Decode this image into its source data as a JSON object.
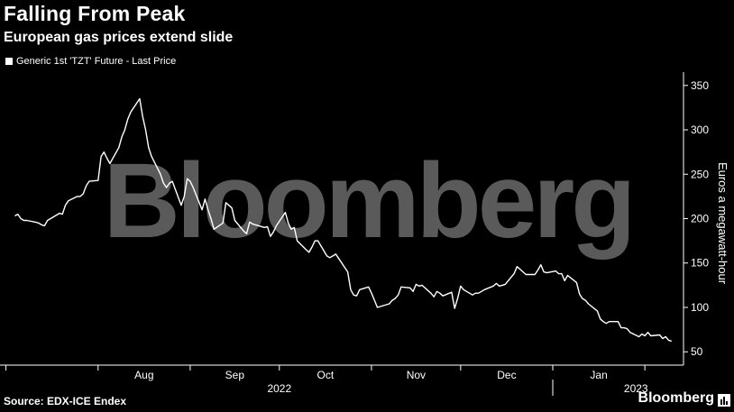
{
  "header": {
    "title": "Falling From Peak",
    "subtitle": "European gas prices extend slide"
  },
  "footer": {
    "source": "Source: EDX-ICE Endex",
    "brand": "Bloomberg"
  },
  "watermark": "Bloomberg",
  "colors": {
    "background": "#000000",
    "line": "#ffffff",
    "watermark": "#5a5a5a",
    "axis": "#ffffff"
  },
  "chart_data": {
    "type": "line",
    "title": "Falling From Peak",
    "subtitle": "European gas prices extend slide",
    "ylabel": "Euros a megawatt-hour",
    "y_axis_side": "right",
    "ylim": [
      35,
      365
    ],
    "yticks": [
      50,
      100,
      150,
      200,
      250,
      300,
      350
    ],
    "x_ticks": [
      {
        "label": "Aug",
        "date": "2022-08-01"
      },
      {
        "label": "Sep",
        "date": "2022-09-01"
      },
      {
        "label": "Oct",
        "date": "2022-10-01"
      },
      {
        "label": "Nov",
        "date": "2022-11-01"
      },
      {
        "label": "Dec",
        "date": "2022-12-01"
      },
      {
        "label": "Jan",
        "date": "2023-01-01"
      }
    ],
    "year_labels": [
      {
        "label": "2022"
      },
      {
        "label": "2023"
      }
    ],
    "legend": "top-left",
    "grid": false,
    "series": [
      {
        "name": "Generic 1st 'TZT' Future - Last Price",
        "points": [
          [
            "2022-07-04",
            203
          ],
          [
            "2022-07-05",
            205
          ],
          [
            "2022-07-06",
            200
          ],
          [
            "2022-07-07",
            198
          ],
          [
            "2022-07-08",
            198
          ],
          [
            "2022-07-11",
            196
          ],
          [
            "2022-07-12",
            195
          ],
          [
            "2022-07-13",
            193
          ],
          [
            "2022-07-14",
            192
          ],
          [
            "2022-07-15",
            198
          ],
          [
            "2022-07-18",
            204
          ],
          [
            "2022-07-19",
            206
          ],
          [
            "2022-07-20",
            205
          ],
          [
            "2022-07-21",
            215
          ],
          [
            "2022-07-22",
            220
          ],
          [
            "2022-07-25",
            225
          ],
          [
            "2022-07-26",
            225
          ],
          [
            "2022-07-27",
            228
          ],
          [
            "2022-07-28",
            237
          ],
          [
            "2022-07-29",
            242
          ],
          [
            "2022-08-01",
            243
          ],
          [
            "2022-08-02",
            270
          ],
          [
            "2022-08-03",
            275
          ],
          [
            "2022-08-04",
            268
          ],
          [
            "2022-08-05",
            262
          ],
          [
            "2022-08-08",
            280
          ],
          [
            "2022-08-09",
            292
          ],
          [
            "2022-08-10",
            300
          ],
          [
            "2022-08-11",
            312
          ],
          [
            "2022-08-12",
            320
          ],
          [
            "2022-08-15",
            335
          ],
          [
            "2022-08-16",
            315
          ],
          [
            "2022-08-17",
            300
          ],
          [
            "2022-08-18",
            280
          ],
          [
            "2022-08-19",
            270
          ],
          [
            "2022-08-22",
            250
          ],
          [
            "2022-08-23",
            240
          ],
          [
            "2022-08-24",
            235
          ],
          [
            "2022-08-25",
            240
          ],
          [
            "2022-08-26",
            242
          ],
          [
            "2022-08-29",
            215
          ],
          [
            "2022-08-30",
            225
          ],
          [
            "2022-08-31",
            245
          ],
          [
            "2022-09-01",
            242
          ],
          [
            "2022-09-02",
            235
          ],
          [
            "2022-09-05",
            210
          ],
          [
            "2022-09-06",
            222
          ],
          [
            "2022-09-07",
            210
          ],
          [
            "2022-09-08",
            200
          ],
          [
            "2022-09-09",
            188
          ],
          [
            "2022-09-12",
            195
          ],
          [
            "2022-09-13",
            218
          ],
          [
            "2022-09-14",
            215
          ],
          [
            "2022-09-15",
            212
          ],
          [
            "2022-09-16",
            198
          ],
          [
            "2022-09-19",
            186
          ],
          [
            "2022-09-20",
            183
          ],
          [
            "2022-09-21",
            196
          ],
          [
            "2022-09-22",
            194
          ],
          [
            "2022-09-23",
            193
          ],
          [
            "2022-09-26",
            190
          ],
          [
            "2022-09-27",
            191
          ],
          [
            "2022-09-28",
            180
          ],
          [
            "2022-09-29",
            185
          ],
          [
            "2022-09-30",
            192
          ],
          [
            "2022-10-03",
            207
          ],
          [
            "2022-10-04",
            195
          ],
          [
            "2022-10-05",
            188
          ],
          [
            "2022-10-06",
            190
          ],
          [
            "2022-10-07",
            175
          ],
          [
            "2022-10-10",
            165
          ],
          [
            "2022-10-11",
            162
          ],
          [
            "2022-10-12",
            168
          ],
          [
            "2022-10-13",
            175
          ],
          [
            "2022-10-14",
            175
          ],
          [
            "2022-10-17",
            158
          ],
          [
            "2022-10-18",
            156
          ],
          [
            "2022-10-19",
            158
          ],
          [
            "2022-10-20",
            160
          ],
          [
            "2022-10-21",
            155
          ],
          [
            "2022-10-24",
            140
          ],
          [
            "2022-10-25",
            120
          ],
          [
            "2022-10-26",
            114
          ],
          [
            "2022-10-27",
            113
          ],
          [
            "2022-10-28",
            120
          ],
          [
            "2022-10-31",
            123
          ],
          [
            "2022-11-01",
            116
          ],
          [
            "2022-11-02",
            108
          ],
          [
            "2022-11-03",
            100
          ],
          [
            "2022-11-04",
            101
          ],
          [
            "2022-11-07",
            104
          ],
          [
            "2022-11-08",
            108
          ],
          [
            "2022-11-09",
            110
          ],
          [
            "2022-11-10",
            114
          ],
          [
            "2022-11-11",
            123
          ],
          [
            "2022-11-14",
            122
          ],
          [
            "2022-11-15",
            118
          ],
          [
            "2022-11-16",
            126
          ],
          [
            "2022-11-17",
            124
          ],
          [
            "2022-11-18",
            125
          ],
          [
            "2022-11-21",
            116
          ],
          [
            "2022-11-22",
            112
          ],
          [
            "2022-11-23",
            118
          ],
          [
            "2022-11-24",
            116
          ],
          [
            "2022-11-25",
            113
          ],
          [
            "2022-11-28",
            117
          ],
          [
            "2022-11-29",
            99
          ],
          [
            "2022-11-30",
            110
          ],
          [
            "2022-12-01",
            124
          ],
          [
            "2022-12-02",
            120
          ],
          [
            "2022-12-05",
            114
          ],
          [
            "2022-12-06",
            116
          ],
          [
            "2022-12-07",
            116
          ],
          [
            "2022-12-08",
            118
          ],
          [
            "2022-12-09",
            120
          ],
          [
            "2022-12-12",
            124
          ],
          [
            "2022-12-13",
            127
          ],
          [
            "2022-12-14",
            124
          ],
          [
            "2022-12-15",
            125
          ],
          [
            "2022-12-16",
            126
          ],
          [
            "2022-12-19",
            138
          ],
          [
            "2022-12-20",
            146
          ],
          [
            "2022-12-21",
            143
          ],
          [
            "2022-12-22",
            140
          ],
          [
            "2022-12-23",
            137
          ],
          [
            "2022-12-26",
            137
          ],
          [
            "2022-12-27",
            142
          ],
          [
            "2022-12-28",
            148
          ],
          [
            "2022-12-29",
            140
          ],
          [
            "2022-12-30",
            139
          ],
          [
            "2023-01-02",
            141
          ],
          [
            "2023-01-03",
            138
          ],
          [
            "2023-01-04",
            138
          ],
          [
            "2023-01-05",
            130
          ],
          [
            "2023-01-06",
            136
          ],
          [
            "2023-01-09",
            128
          ],
          [
            "2023-01-10",
            115
          ],
          [
            "2023-01-11",
            110
          ],
          [
            "2023-01-12",
            108
          ],
          [
            "2023-01-13",
            104
          ],
          [
            "2023-01-16",
            96
          ],
          [
            "2023-01-17",
            87
          ],
          [
            "2023-01-18",
            84
          ],
          [
            "2023-01-19",
            82
          ],
          [
            "2023-01-20",
            84
          ],
          [
            "2023-01-23",
            84
          ],
          [
            "2023-01-24",
            77
          ],
          [
            "2023-01-25",
            77
          ],
          [
            "2023-01-26",
            76
          ],
          [
            "2023-01-27",
            72
          ],
          [
            "2023-01-30",
            67
          ],
          [
            "2023-01-31",
            70
          ],
          [
            "2023-02-01",
            68
          ],
          [
            "2023-02-02",
            72
          ],
          [
            "2023-02-03",
            68
          ],
          [
            "2023-02-06",
            69
          ],
          [
            "2023-02-07",
            65
          ],
          [
            "2023-02-08",
            67
          ],
          [
            "2023-02-09",
            63
          ],
          [
            "2023-02-10",
            62
          ]
        ]
      }
    ]
  }
}
